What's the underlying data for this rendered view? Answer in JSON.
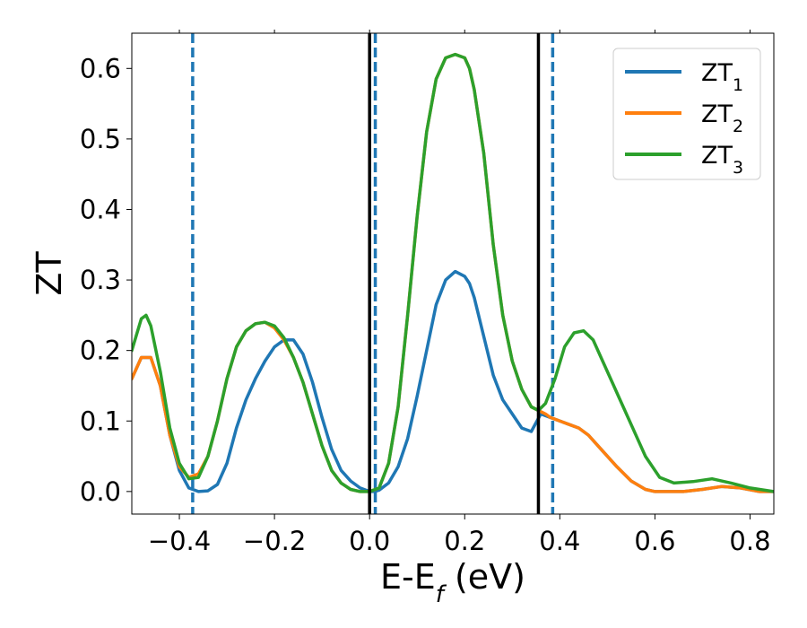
{
  "chart_data": {
    "type": "line",
    "xlabel": "E-E",
    "xlabel_sub": "f",
    "xlabel_unit": " (eV)",
    "ylabel": "ZT",
    "xlim": [
      -0.5,
      0.85
    ],
    "ylim": [
      -0.032,
      0.65
    ],
    "xticks": [
      -0.4,
      -0.2,
      0.0,
      0.2,
      0.4,
      0.6,
      0.8
    ],
    "xtick_labels": [
      "−0.4",
      "−0.2",
      "0.0",
      "0.2",
      "0.4",
      "0.6",
      "0.8"
    ],
    "yticks": [
      0.0,
      0.1,
      0.2,
      0.3,
      0.4,
      0.5,
      0.6
    ],
    "ytick_labels": [
      "0.0",
      "0.1",
      "0.2",
      "0.3",
      "0.4",
      "0.5",
      "0.6"
    ],
    "grid": false,
    "legend_position": "top-right",
    "legend": [
      {
        "base": "ZT",
        "sub": "1",
        "color": "#1f77b4"
      },
      {
        "base": "ZT",
        "sub": "2",
        "color": "#ff7f0e"
      },
      {
        "base": "ZT",
        "sub": "3",
        "color": "#2ca02c"
      }
    ],
    "vlines": [
      {
        "x": -0.372,
        "style": "dashed",
        "color": "#1f77b4"
      },
      {
        "x": 0.012,
        "style": "dashed",
        "color": "#1f77b4"
      },
      {
        "x": 0.385,
        "style": "dashed",
        "color": "#1f77b4"
      },
      {
        "x": 0.0,
        "style": "solid",
        "color": "#000000"
      },
      {
        "x": 0.355,
        "style": "solid",
        "color": "#000000"
      }
    ],
    "series": [
      {
        "color": "#1f77b4",
        "x": [
          -0.5,
          -0.48,
          -0.46,
          -0.44,
          -0.42,
          -0.4,
          -0.38,
          -0.36,
          -0.34,
          -0.32,
          -0.3,
          -0.28,
          -0.26,
          -0.24,
          -0.22,
          -0.2,
          -0.18,
          -0.16,
          -0.14,
          -0.12,
          -0.1,
          -0.08,
          -0.06,
          -0.04,
          -0.02,
          0.0,
          0.01,
          0.02,
          0.04,
          0.06,
          0.08,
          0.1,
          0.12,
          0.14,
          0.16,
          0.18,
          0.2,
          0.21,
          0.22,
          0.24,
          0.26,
          0.28,
          0.3,
          0.32,
          0.34,
          0.36,
          0.38,
          0.4,
          0.42,
          0.44,
          0.46,
          0.48,
          0.5,
          0.52,
          0.55,
          0.58,
          0.6,
          0.62,
          0.66,
          0.7,
          0.74,
          0.78,
          0.82,
          0.85
        ],
        "y": [
          0.16,
          0.19,
          0.19,
          0.15,
          0.08,
          0.03,
          0.005,
          0.0,
          0.001,
          0.01,
          0.04,
          0.09,
          0.13,
          0.16,
          0.185,
          0.205,
          0.215,
          0.215,
          0.195,
          0.155,
          0.105,
          0.06,
          0.03,
          0.015,
          0.005,
          0.0,
          0.0,
          0.002,
          0.012,
          0.035,
          0.075,
          0.135,
          0.2,
          0.265,
          0.3,
          0.312,
          0.305,
          0.295,
          0.275,
          0.22,
          0.165,
          0.13,
          0.11,
          0.09,
          0.085,
          0.11,
          0.105,
          0.1,
          0.095,
          0.09,
          0.08,
          0.065,
          0.05,
          0.035,
          0.015,
          0.003,
          0.0,
          0.0,
          0.0,
          0.003,
          0.007,
          0.005,
          0.0,
          0.0
        ]
      },
      {
        "color": "#ff7f0e",
        "x": [
          -0.5,
          -0.48,
          -0.46,
          -0.44,
          -0.42,
          -0.4,
          -0.38,
          -0.36,
          -0.34,
          -0.32,
          -0.3,
          -0.28,
          -0.26,
          -0.24,
          -0.22,
          -0.2,
          -0.18,
          -0.16,
          -0.14,
          -0.12,
          -0.1,
          -0.08,
          -0.06,
          -0.04,
          -0.02,
          0.0,
          0.02,
          0.04,
          0.06,
          0.08,
          0.1,
          0.12,
          0.14,
          0.16,
          0.18,
          0.2,
          0.21,
          0.22,
          0.24,
          0.26,
          0.28,
          0.3,
          0.32,
          0.34,
          0.355,
          0.37,
          0.38,
          0.4,
          0.42,
          0.44,
          0.46,
          0.48,
          0.5,
          0.52,
          0.55,
          0.58,
          0.6,
          0.62,
          0.66,
          0.7,
          0.74,
          0.78,
          0.82,
          0.85
        ],
        "y": [
          0.16,
          0.19,
          0.19,
          0.15,
          0.08,
          0.035,
          0.02,
          0.025,
          0.05,
          0.1,
          0.16,
          0.205,
          0.228,
          0.238,
          0.24,
          0.232,
          0.215,
          0.19,
          0.155,
          0.11,
          0.065,
          0.03,
          0.012,
          0.003,
          0.0,
          0.0,
          0.005,
          0.04,
          0.12,
          0.25,
          0.39,
          0.51,
          0.585,
          0.615,
          0.62,
          0.615,
          0.6,
          0.57,
          0.48,
          0.35,
          0.25,
          0.185,
          0.145,
          0.12,
          0.115,
          0.11,
          0.105,
          0.1,
          0.095,
          0.09,
          0.08,
          0.065,
          0.05,
          0.035,
          0.015,
          0.003,
          0.0,
          0.0,
          0.0,
          0.003,
          0.007,
          0.005,
          0.0,
          0.0
        ]
      },
      {
        "color": "#2ca02c",
        "x": [
          -0.5,
          -0.48,
          -0.47,
          -0.46,
          -0.44,
          -0.42,
          -0.4,
          -0.38,
          -0.36,
          -0.34,
          -0.32,
          -0.3,
          -0.28,
          -0.26,
          -0.24,
          -0.22,
          -0.2,
          -0.18,
          -0.16,
          -0.14,
          -0.12,
          -0.1,
          -0.08,
          -0.06,
          -0.04,
          -0.02,
          0.0,
          0.02,
          0.04,
          0.06,
          0.08,
          0.1,
          0.12,
          0.14,
          0.16,
          0.18,
          0.2,
          0.21,
          0.22,
          0.24,
          0.26,
          0.28,
          0.3,
          0.32,
          0.34,
          0.355,
          0.37,
          0.39,
          0.41,
          0.43,
          0.45,
          0.47,
          0.49,
          0.51,
          0.53,
          0.55,
          0.58,
          0.61,
          0.64,
          0.68,
          0.72,
          0.76,
          0.8,
          0.85
        ],
        "y": [
          0.2,
          0.245,
          0.25,
          0.235,
          0.17,
          0.09,
          0.04,
          0.018,
          0.02,
          0.05,
          0.1,
          0.16,
          0.205,
          0.228,
          0.238,
          0.24,
          0.235,
          0.218,
          0.19,
          0.155,
          0.11,
          0.065,
          0.03,
          0.012,
          0.003,
          0.0,
          0.0,
          0.005,
          0.04,
          0.12,
          0.25,
          0.39,
          0.51,
          0.585,
          0.615,
          0.62,
          0.615,
          0.6,
          0.57,
          0.48,
          0.35,
          0.25,
          0.185,
          0.145,
          0.12,
          0.115,
          0.125,
          0.16,
          0.205,
          0.225,
          0.228,
          0.215,
          0.185,
          0.155,
          0.125,
          0.095,
          0.05,
          0.02,
          0.012,
          0.014,
          0.018,
          0.012,
          0.005,
          0.0
        ]
      }
    ]
  }
}
